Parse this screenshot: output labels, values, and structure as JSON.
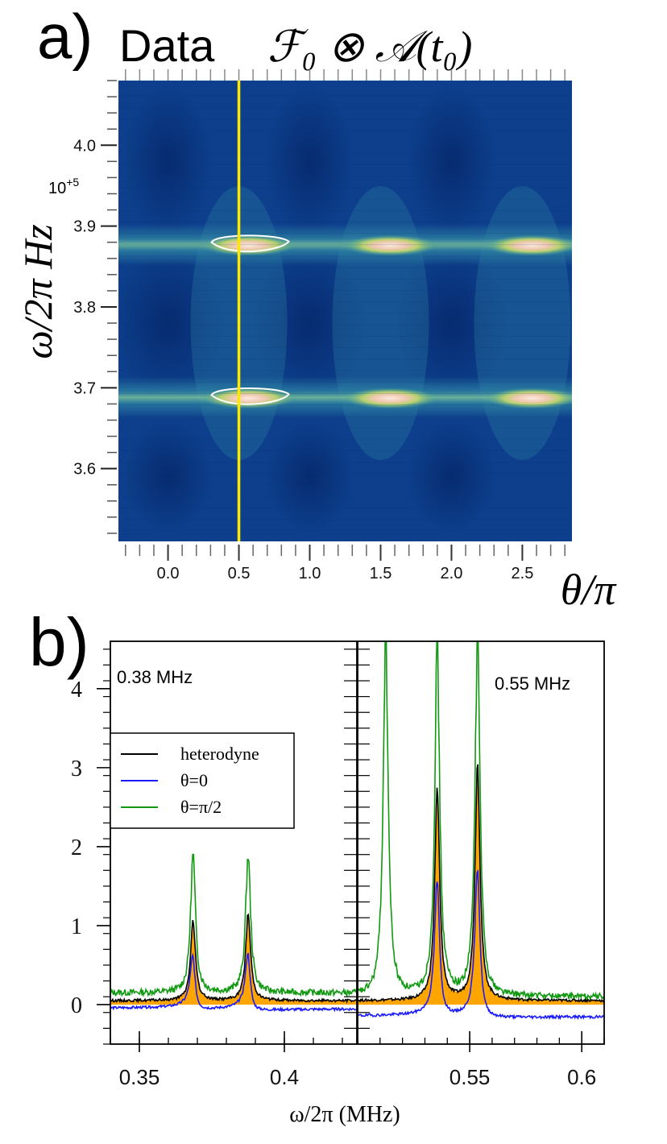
{
  "panel_a": {
    "label": "a)",
    "title_left": "Data",
    "title_right": "ℱ₀ ⊗ 𝒜(t₀)",
    "ylabel": "ω/2π Hz",
    "xlabel": "θ/π",
    "y_exponent": "10",
    "y_exponent_sup": "+5",
    "colors": {
      "background": "#0d3f8c",
      "band": "#2f86a4",
      "peak_core": "#f2d7bf",
      "peak_glow": "#b9d26e",
      "cursor": "#ffe800",
      "contour": "#ffffff"
    }
  },
  "panel_b": {
    "label": "b)",
    "left_annotation": "0.38 MHz",
    "right_annotation": "0.55 MHz",
    "xlabel": "ω/2π (MHz)",
    "legend": [
      {
        "name": "heterodyne",
        "color": "#000000"
      },
      {
        "name": "θ=0",
        "color": "#1a1aff"
      },
      {
        "name": "θ=π/2",
        "color": "#119911"
      }
    ],
    "fill_color": "#ffa500"
  },
  "chart_data": [
    {
      "type": "heatmap",
      "title": "Data  ℱ₀ ⊗ 𝒜(t₀)",
      "xlabel": "θ/π",
      "ylabel": "ω/2π Hz",
      "x_ticks": [
        0.0,
        0.5,
        1.0,
        1.5,
        2.0,
        2.5
      ],
      "x_tick_labels": [
        "0.0",
        "0.5",
        "1.0",
        "1.5",
        "2.0",
        "2.5"
      ],
      "xlim": [
        -0.35,
        2.85
      ],
      "y_ticks": [
        3.6,
        3.7,
        3.8,
        3.9,
        4.0
      ],
      "y_tick_labels": [
        "3.6",
        "3.7",
        "3.8",
        "3.9",
        "4.0"
      ],
      "y_multiplier": "10^+5",
      "ylim": [
        3.51,
        4.08
      ],
      "band_frequencies": [
        3.688,
        3.877
      ],
      "peak_theta": [
        0.5,
        1.5,
        2.5
      ],
      "cursor_theta": 0.5
    },
    {
      "type": "line",
      "xlabel": "ω/2π (MHz)",
      "ylim": [
        -0.5,
        4.6
      ],
      "y_ticks": [
        0,
        1,
        2,
        3,
        4
      ],
      "y_tick_labels": [
        "0",
        "1",
        "2",
        "3",
        "4"
      ],
      "subplots": [
        {
          "annotation": "0.38 MHz",
          "xlim": [
            0.34,
            0.425
          ],
          "x_ticks": [
            0.35,
            0.4
          ],
          "x_tick_labels": [
            "0.35",
            "0.4"
          ],
          "series": [
            {
              "name": "heterodyne",
              "peaks": [
                {
                  "x": 0.3685,
                  "height": 1.0
                },
                {
                  "x": 0.3875,
                  "height": 1.1
                }
              ],
              "baseline": 0.05
            },
            {
              "name": "θ=0",
              "peaks": [
                {
                  "x": 0.3685,
                  "height": 0.65
                },
                {
                  "x": 0.3875,
                  "height": 0.7
                }
              ],
              "baseline": -0.05
            },
            {
              "name": "θ=π/2",
              "peaks": [
                {
                  "x": 0.3685,
                  "height": 1.75
                },
                {
                  "x": 0.3875,
                  "height": 1.75
                }
              ],
              "baseline": 0.15
            }
          ]
        },
        {
          "annotation": "0.55 MHz",
          "xlim": [
            0.5,
            0.61
          ],
          "x_ticks": [
            0.55,
            0.6
          ],
          "x_tick_labels": [
            "0.55",
            "0.6"
          ],
          "series": [
            {
              "name": "heterodyne",
              "peaks": [
                {
                  "x": 0.5355,
                  "height": 2.65
                },
                {
                  "x": 0.5535,
                  "height": 3.0
                }
              ],
              "baseline": 0.05
            },
            {
              "name": "θ=0",
              "peaks": [
                {
                  "x": 0.5355,
                  "height": 1.7
                },
                {
                  "x": 0.5535,
                  "height": 1.9
                }
              ],
              "baseline": -0.15
            },
            {
              "name": "θ=π/2",
              "peaks": [
                {
                  "x": 0.5125,
                  "height": 4.6
                },
                {
                  "x": 0.5355,
                  "height": 4.4
                },
                {
                  "x": 0.5535,
                  "height": 4.6
                }
              ],
              "baseline": 0.1
            }
          ]
        }
      ]
    }
  ]
}
